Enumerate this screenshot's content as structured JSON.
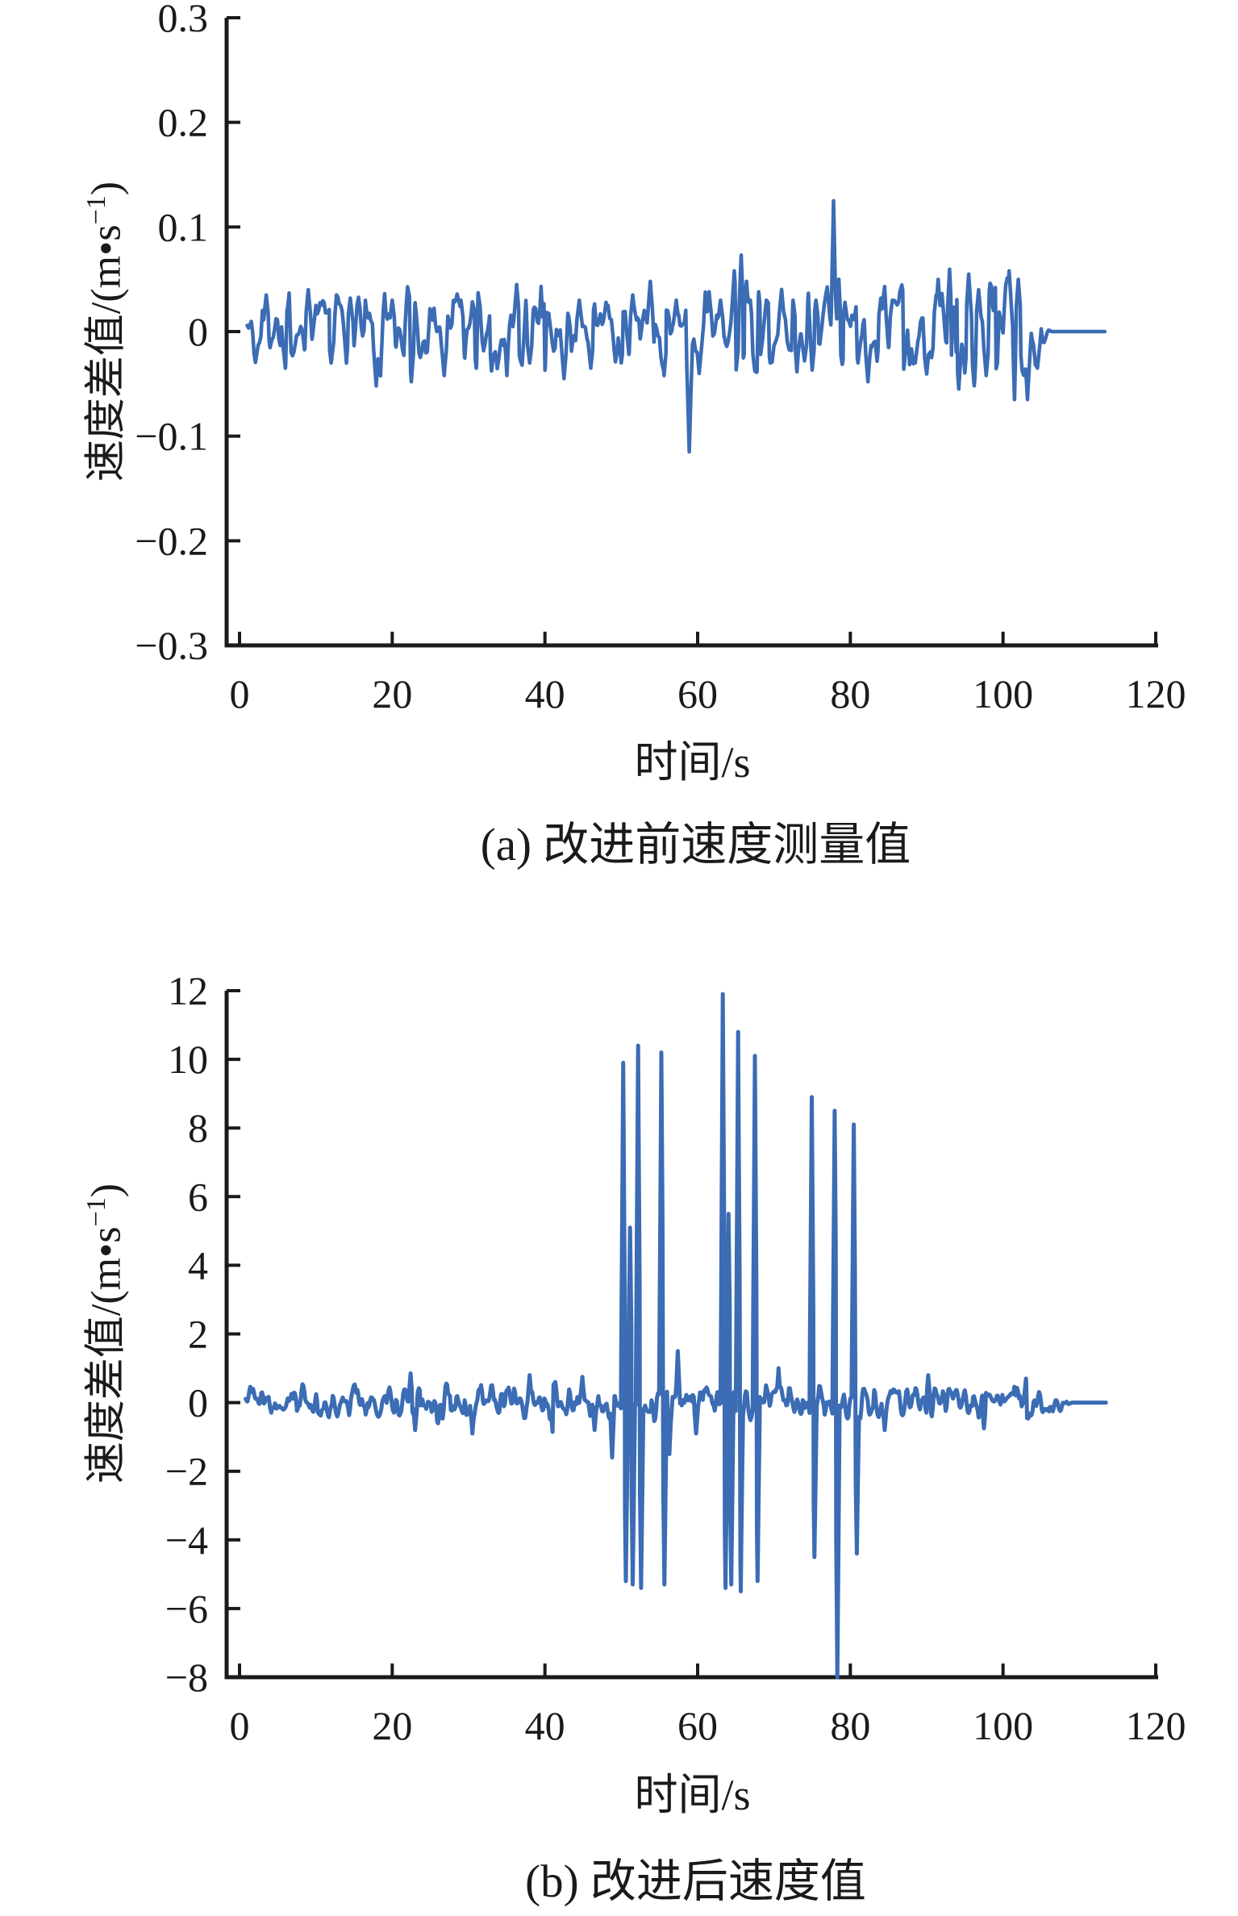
{
  "figure": {
    "background": "#ffffff",
    "line_color": "#3B6CB4",
    "axis_color": "#1a1a1a",
    "text_color": "#1a1a1a"
  },
  "chart_data": [
    {
      "type": "line",
      "panel": "a",
      "caption": "(a) 改进前速度测量值",
      "xlabel": "时间/s",
      "ylabel": "速度差值/(m•s⁻¹)",
      "ylabel_parts": {
        "main": "速度差值/(m•s",
        "sup": "−1",
        "close": ")"
      },
      "xlim": [
        0,
        120
      ],
      "ylim": [
        -0.3,
        0.3
      ],
      "xticks": [
        0,
        20,
        40,
        60,
        80,
        100,
        120
      ],
      "xtick_labels": [
        "0",
        "20",
        "40",
        "60",
        "80",
        "100",
        "120"
      ],
      "ytick_values": [
        0.3,
        0.2,
        0.1,
        0,
        -0.1,
        -0.2,
        -0.3
      ],
      "ytick_labels": [
        "0.3",
        "0.2",
        "0.1",
        "0",
        "−0.1",
        "−0.2",
        "−0.3"
      ],
      "legend": null,
      "grid": false,
      "description": "Noisy velocity-difference signal around 0 (±0.03 typical), deep dip to −0.115 at t≈59, spike to +0.125 at t≈78, larger ±0.05 swings t≈93–104, settles flat to 0 from t≈106 to 113.5",
      "signal": {
        "t_start": 1.0,
        "t_end": 113.5,
        "event_width": 0.5,
        "envelope": [
          [
            1,
            0.018
          ],
          [
            5,
            0.022
          ],
          [
            15,
            0.024
          ],
          [
            25,
            0.024
          ],
          [
            35,
            0.024
          ],
          [
            45,
            0.022
          ],
          [
            55,
            0.026
          ],
          [
            60,
            0.026
          ],
          [
            67,
            0.028
          ],
          [
            72,
            0.022
          ],
          [
            80,
            0.024
          ],
          [
            88,
            0.026
          ],
          [
            93,
            0.032
          ],
          [
            100,
            0.034
          ],
          [
            103,
            0.034
          ],
          [
            104.8,
            0.02
          ],
          [
            105.8,
            0.006
          ],
          [
            106.3,
            0
          ],
          [
            113.5,
            0
          ]
        ],
        "events": [
          [
            3.5,
            0.035
          ],
          [
            6,
            -0.035
          ],
          [
            9,
            0.04
          ],
          [
            12,
            -0.03
          ],
          [
            14.5,
            0.032
          ],
          [
            17.9,
            -0.052
          ],
          [
            20,
            0.03
          ],
          [
            22.5,
            -0.048
          ],
          [
            26.8,
            -0.042
          ],
          [
            29,
            0.03
          ],
          [
            31,
            -0.035
          ],
          [
            33,
            0.03
          ],
          [
            36.3,
            0.045
          ],
          [
            38,
            -0.03
          ],
          [
            40,
            0.035
          ],
          [
            42.5,
            -0.045
          ],
          [
            44.5,
            0.03
          ],
          [
            46,
            -0.035
          ],
          [
            48,
            0.028
          ],
          [
            50,
            -0.03
          ],
          [
            51.5,
            0.035
          ],
          [
            53.8,
            0.048
          ],
          [
            55.6,
            -0.042
          ],
          [
            57.2,
            0.03
          ],
          [
            58.9,
            -0.115,
            0.45
          ],
          [
            60.2,
            -0.04
          ],
          [
            61.5,
            0.038
          ],
          [
            63,
            0.03
          ],
          [
            64.8,
            0.058
          ],
          [
            65.7,
            0.073,
            0.4
          ],
          [
            66.4,
            0.048
          ],
          [
            68,
            0.038
          ],
          [
            69.5,
            -0.03
          ],
          [
            71,
            -0.035
          ],
          [
            72.5,
            0.03
          ],
          [
            74,
            -0.028
          ],
          [
            75.5,
            0.03
          ],
          [
            77.8,
            0.125,
            0.35
          ],
          [
            78.5,
            0.05,
            0.3
          ],
          [
            79.3,
            0.028
          ],
          [
            81,
            -0.03
          ],
          [
            82.3,
            -0.048
          ],
          [
            84,
            0.032
          ],
          [
            85.5,
            0.03
          ],
          [
            87,
            -0.036
          ],
          [
            88.5,
            -0.03
          ],
          [
            90,
            0.035
          ],
          [
            91.5,
            0.05
          ],
          [
            93,
            -0.045
          ],
          [
            94.2,
            -0.055
          ],
          [
            95.5,
            0.055
          ],
          [
            96.8,
            0.04
          ],
          [
            97.8,
            -0.042
          ],
          [
            99,
            0.042
          ],
          [
            100.8,
            0.058
          ],
          [
            102,
            0.05
          ],
          [
            103.2,
            -0.065,
            0.5
          ],
          [
            104.5,
            -0.035
          ]
        ]
      }
    },
    {
      "type": "line",
      "panel": "b",
      "caption": "(b) 改进后速度值",
      "xlabel": "时间/s",
      "ylabel": "速度差值/(m•s⁻¹)",
      "ylabel_parts": {
        "main": "速度差值/(m•s",
        "sup": "−1",
        "close": ")"
      },
      "xlim": [
        0,
        120
      ],
      "ylim": [
        -8,
        12
      ],
      "xticks": [
        0,
        20,
        40,
        60,
        80,
        100,
        120
      ],
      "xtick_labels": [
        "0",
        "20",
        "40",
        "60",
        "80",
        "100",
        "120"
      ],
      "ytick_values": [
        12,
        10,
        8,
        6,
        4,
        2,
        0,
        -2,
        -4,
        -6,
        -8
      ],
      "ytick_labels": [
        "12",
        "10",
        "8",
        "6",
        "4",
        "2",
        "0",
        "−2",
        "−4",
        "−6",
        "−8"
      ],
      "legend": null,
      "grid": false,
      "description": "Dense noise band ±0.3 around 0 with narrow large spikes: up ≈9.9/10.4/10.2 near t≈50–55, tallest 11.9 at t≈63, 10.8 and 10.1 near t≈65–68, 8.9/8.5/8.1 near t≈75–81, downward spikes ≈−5.3 and one reaching −8 at t≈78; flat 0 tail after t≈109",
      "signal": {
        "t_start": 0.8,
        "t_end": 113.5,
        "event_width": 0.3,
        "envelope": [
          [
            0.8,
            0.3
          ],
          [
            10,
            0.32
          ],
          [
            20,
            0.34
          ],
          [
            23,
            0.38
          ],
          [
            28,
            0.32
          ],
          [
            35,
            0.33
          ],
          [
            42,
            0.32
          ],
          [
            48,
            0.34
          ],
          [
            52,
            0.36
          ],
          [
            58,
            0.34
          ],
          [
            64,
            0.36
          ],
          [
            70,
            0.34
          ],
          [
            76,
            0.33
          ],
          [
            82,
            0.32
          ],
          [
            90,
            0.3
          ],
          [
            98,
            0.3
          ],
          [
            104,
            0.28
          ],
          [
            107,
            0.2
          ],
          [
            108.3,
            0.07
          ],
          [
            109,
            0
          ],
          [
            113.5,
            0
          ]
        ],
        "events": [
          [
            22.4,
            0.85
          ],
          [
            23.0,
            -0.8
          ],
          [
            30.5,
            -0.9
          ],
          [
            38,
            0.8
          ],
          [
            41,
            -0.85
          ],
          [
            44.9,
            0.75
          ],
          [
            46.5,
            -0.8
          ],
          [
            48.8,
            -1.6
          ],
          [
            50.25,
            9.9
          ],
          [
            50.6,
            -5.2
          ],
          [
            51.15,
            5.1
          ],
          [
            51.5,
            -5.3
          ],
          [
            52.2,
            10.4
          ],
          [
            52.6,
            -5.4
          ],
          [
            55.25,
            10.2
          ],
          [
            55.65,
            -5.3
          ],
          [
            56.3,
            -1.5
          ],
          [
            57.4,
            1.5
          ],
          [
            59.8,
            -0.9
          ],
          [
            63.3,
            11.9
          ],
          [
            63.65,
            -5.4
          ],
          [
            64.05,
            5.5
          ],
          [
            64.4,
            -5.3
          ],
          [
            65.3,
            10.8
          ],
          [
            65.65,
            -5.5
          ],
          [
            67.5,
            10.1
          ],
          [
            67.85,
            -5.2
          ],
          [
            70.6,
            1.0
          ],
          [
            74.95,
            8.9
          ],
          [
            75.3,
            -4.5
          ],
          [
            77.95,
            8.5
          ],
          [
            78.3,
            -8.0
          ],
          [
            80.45,
            8.1
          ],
          [
            80.85,
            -4.4
          ],
          [
            84.5,
            -0.8
          ],
          [
            90.2,
            0.8
          ],
          [
            97.5,
            -0.75
          ],
          [
            103,
            0.7
          ]
        ]
      }
    }
  ]
}
